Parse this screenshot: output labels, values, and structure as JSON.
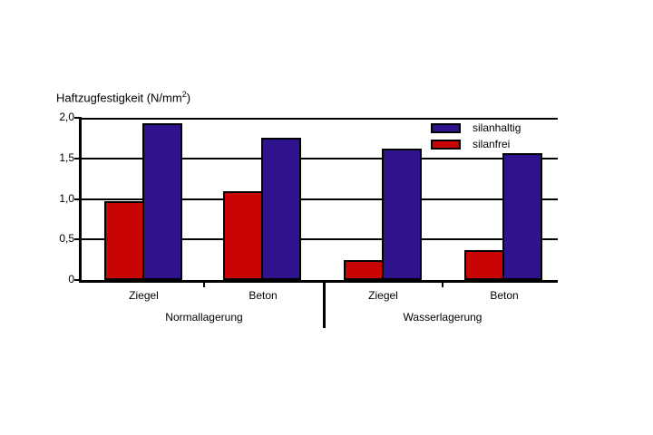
{
  "chart_data": {
    "type": "bar",
    "title": "Haftzugfestigkeit (N/mm2)",
    "ylabel": {
      "prefix": "Haftzugfestigkeit (N/mm",
      "sup": "2",
      "suffix": ")"
    },
    "ylim": [
      0,
      2
    ],
    "grid": true,
    "legend_position": "top-right",
    "yticks": [
      {
        "label": "2,0",
        "value": 2
      },
      {
        "label": "1,5",
        "value": 1.5
      },
      {
        "label": "1,0",
        "value": 1
      },
      {
        "label": "0,5",
        "value": 0.5
      },
      {
        "label": "0",
        "value": 0
      }
    ],
    "series": [
      {
        "name": "silanhaltig",
        "color": "#2e138d"
      },
      {
        "name": "silanfrei",
        "color": "#c80404"
      }
    ],
    "pair_order": [
      "silanfrei",
      "silanhaltig"
    ],
    "groups": [
      {
        "label": "Normallagerung",
        "categories": [
          {
            "label": "Ziegel",
            "values": {
              "silanfrei": 0.97,
              "silanhaltig": 1.93
            }
          },
          {
            "label": "Beton",
            "values": {
              "silanfrei": 1.1,
              "silanhaltig": 1.75
            }
          }
        ]
      },
      {
        "label": "Wasserlagerung",
        "categories": [
          {
            "label": "Ziegel",
            "values": {
              "silanfrei": 0.25,
              "silanhaltig": 1.62
            }
          },
          {
            "label": "Beton",
            "values": {
              "silanfrei": 0.37,
              "silanhaltig": 1.56
            }
          }
        ]
      }
    ]
  }
}
